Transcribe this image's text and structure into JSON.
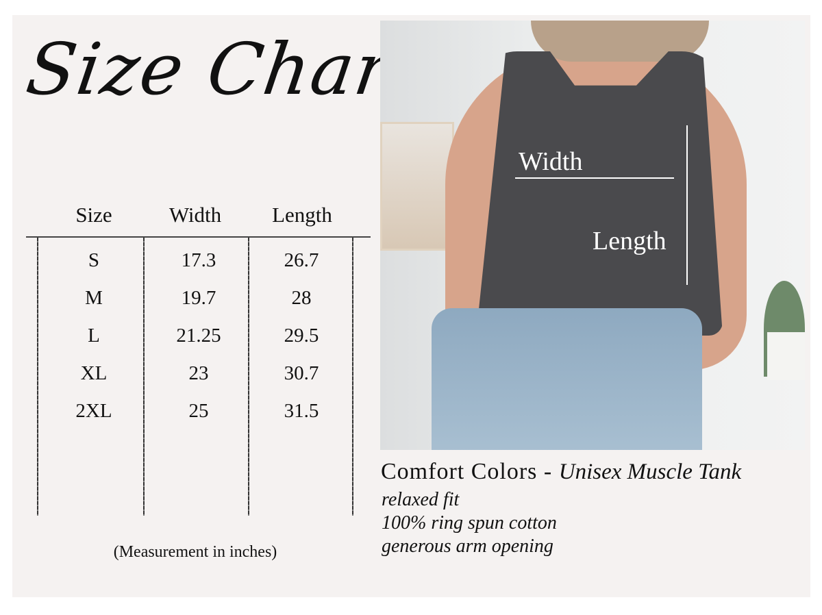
{
  "title": "Size Chart",
  "table": {
    "headers": [
      "Size",
      "Width",
      "Length"
    ],
    "rows": [
      [
        "S",
        "17.3",
        "26.7"
      ],
      [
        "M",
        "19.7",
        "28"
      ],
      [
        "L",
        "21.25",
        "29.5"
      ],
      [
        "XL",
        "23",
        "30.7"
      ],
      [
        "2XL",
        "25",
        "31.5"
      ]
    ],
    "caption": "(Measurement in inches)"
  },
  "photo": {
    "width_label": "Width",
    "length_label": "Length"
  },
  "product": {
    "brand": "Comfort Colors",
    "separator": "-",
    "name": "Unisex Muscle Tank",
    "features": [
      "relaxed fit",
      "100% ring spun cotton",
      "generous arm opening"
    ]
  },
  "colors": {
    "background": "#f5f2f1",
    "tank": "#4a4a4d",
    "text": "#111111"
  }
}
